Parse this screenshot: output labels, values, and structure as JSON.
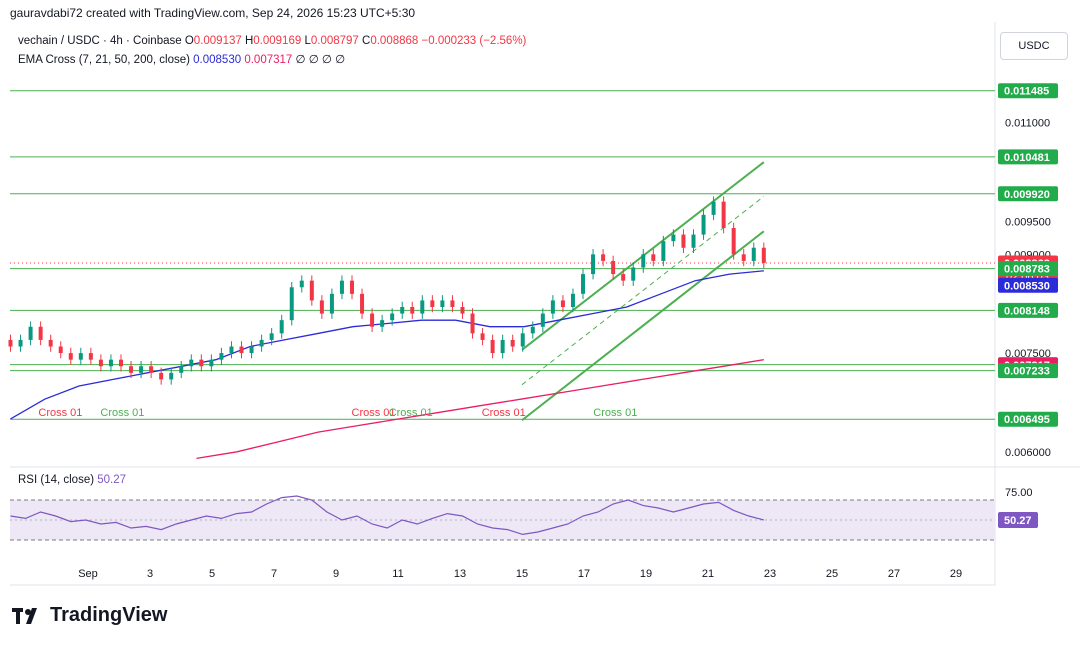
{
  "credit": "gauravdabi72 created with TradingView.com, Sep 24, 2026 15:23 UTC+5:30",
  "legend": {
    "symbol": "vechain / USDC · 4h · Coinbase",
    "o_label": "O",
    "o_value": "0.009137",
    "h_label": "H",
    "h_value": "0.009169",
    "l_label": "L",
    "l_value": "0.008797",
    "c_label": "C",
    "c_value": "0.008868",
    "change": "−0.000233 (−2.56%)",
    "ema_title": "EMA Cross (7, 21, 50, 200, close)",
    "ema_v1": "0.008530",
    "ema_v2": "0.007317",
    "ema_rest": "∅ ∅ ∅ ∅"
  },
  "currency_button": "USDC",
  "rsi_legend": {
    "title": "RSI (14, close)",
    "value": "50.27"
  },
  "logo_text": "TradingView",
  "colors": {
    "green": "#4caf50",
    "greenLabel": "#22ab4a",
    "red": "#f23645",
    "ema50": "#2b2bd9",
    "ema200": "#e91e63",
    "rsi": "#7e57c2",
    "rsiBand": "#ede7f6"
  },
  "chart_data": {
    "type": "candlestick",
    "x_ticks": [
      "Sep",
      "3",
      "5",
      "7",
      "9",
      "11",
      "13",
      "15",
      "17",
      "19",
      "21",
      "23",
      "25",
      "27",
      "29"
    ],
    "y_ticks": [
      "0.011000",
      "0.009500",
      "0.009000",
      "0.007500",
      "0.006000"
    ],
    "y_range": [
      0.0058,
      0.0118
    ],
    "horizontal_levels": [
      "0.011485",
      "0.010481",
      "0.009920",
      "0.008783",
      "0.008148",
      "0.007325",
      "0.007233",
      "0.006495"
    ],
    "price_labels": [
      {
        "value": "0.011485",
        "color": "#22ab4a"
      },
      {
        "value": "0.010481",
        "color": "#22ab4a"
      },
      {
        "value": "0.009920",
        "color": "#22ab4a"
      },
      {
        "value": "0.008868",
        "color": "#f23645",
        "sub": "02:06:03"
      },
      {
        "value": "0.008783",
        "color": "#22ab4a"
      },
      {
        "value": "0.008530",
        "color": "#2b2bd9"
      },
      {
        "value": "0.008148",
        "color": "#22ab4a"
      },
      {
        "value": "0.007325",
        "color": "#22ab4a"
      },
      {
        "value": "0.007317",
        "color": "#e91e63"
      },
      {
        "value": "0.007233",
        "color": "#22ab4a"
      },
      {
        "value": "0.006495",
        "color": "#22ab4a"
      }
    ],
    "cross_labels": [
      {
        "text": "Cross 01",
        "color": "#f23645",
        "day": 0.4
      },
      {
        "text": "Cross 01",
        "color": "#4caf50",
        "day": 2.4
      },
      {
        "text": "Cross 01",
        "color": "#f23645",
        "day": 10.5
      },
      {
        "text": "Cross 01",
        "color": "#4caf50",
        "day": 11.7
      },
      {
        "text": "Cross 01",
        "color": "#f23645",
        "day": 14.7
      },
      {
        "text": "Cross 01",
        "color": "#4caf50",
        "day": 18.3
      }
    ],
    "price_series": [
      [
        0.0077,
        0.0076
      ],
      [
        0.0076,
        0.0077
      ],
      [
        0.0077,
        0.0079
      ],
      [
        0.0079,
        0.0077
      ],
      [
        0.0077,
        0.0076
      ],
      [
        0.0076,
        0.0075
      ],
      [
        0.0075,
        0.0074
      ],
      [
        0.0074,
        0.0075
      ],
      [
        0.0075,
        0.0074
      ],
      [
        0.0074,
        0.0073
      ],
      [
        0.0073,
        0.0074
      ],
      [
        0.0074,
        0.0073
      ],
      [
        0.0073,
        0.0072
      ],
      [
        0.0072,
        0.0073
      ],
      [
        0.0073,
        0.0072
      ],
      [
        0.0072,
        0.0071
      ],
      [
        0.0071,
        0.0072
      ],
      [
        0.0072,
        0.0073
      ],
      [
        0.0073,
        0.0074
      ],
      [
        0.0074,
        0.0073
      ],
      [
        0.0073,
        0.0074
      ],
      [
        0.0074,
        0.0075
      ],
      [
        0.0075,
        0.0076
      ],
      [
        0.0076,
        0.0075
      ],
      [
        0.0075,
        0.0076
      ],
      [
        0.0076,
        0.0077
      ],
      [
        0.0077,
        0.0078
      ],
      [
        0.0078,
        0.008
      ],
      [
        0.008,
        0.0085
      ],
      [
        0.0085,
        0.0086
      ],
      [
        0.0086,
        0.0083
      ],
      [
        0.0083,
        0.0081
      ],
      [
        0.0081,
        0.0084
      ],
      [
        0.0084,
        0.0086
      ],
      [
        0.0086,
        0.0084
      ],
      [
        0.0084,
        0.0081
      ],
      [
        0.0081,
        0.0079
      ],
      [
        0.0079,
        0.008
      ],
      [
        0.008,
        0.0081
      ],
      [
        0.0081,
        0.0082
      ],
      [
        0.0082,
        0.0081
      ],
      [
        0.0081,
        0.0083
      ],
      [
        0.0083,
        0.0082
      ],
      [
        0.0082,
        0.0083
      ],
      [
        0.0083,
        0.0082
      ],
      [
        0.0082,
        0.0081
      ],
      [
        0.0081,
        0.0078
      ],
      [
        0.0078,
        0.0077
      ],
      [
        0.0077,
        0.0075
      ],
      [
        0.0075,
        0.0077
      ],
      [
        0.0077,
        0.0076
      ],
      [
        0.0076,
        0.0078
      ],
      [
        0.0078,
        0.0079
      ],
      [
        0.0079,
        0.0081
      ],
      [
        0.0081,
        0.0083
      ],
      [
        0.0083,
        0.0082
      ],
      [
        0.0082,
        0.0084
      ],
      [
        0.0084,
        0.0087
      ],
      [
        0.0087,
        0.009
      ],
      [
        0.009,
        0.0089
      ],
      [
        0.0089,
        0.0087
      ],
      [
        0.0087,
        0.0086
      ],
      [
        0.0086,
        0.0088
      ],
      [
        0.0088,
        0.009
      ],
      [
        0.009,
        0.0089
      ],
      [
        0.0089,
        0.0092
      ],
      [
        0.0092,
        0.0093
      ],
      [
        0.0093,
        0.0091
      ],
      [
        0.0091,
        0.0093
      ],
      [
        0.0093,
        0.0096
      ],
      [
        0.0096,
        0.0098
      ],
      [
        0.0098,
        0.0094
      ],
      [
        0.0094,
        0.009
      ],
      [
        0.009,
        0.0089
      ],
      [
        0.0089,
        0.0091
      ],
      [
        0.0091,
        0.00887
      ]
    ],
    "ema50": [
      0.0065,
      0.0068,
      0.007,
      0.0071,
      0.0072,
      0.0073,
      0.0074,
      0.0076,
      0.0077,
      0.0078,
      0.0079,
      0.00795,
      0.008,
      0.008,
      0.0079,
      0.0079,
      0.008,
      0.0081,
      0.0082,
      0.0084,
      0.0086,
      0.0087,
      0.00875
    ],
    "ema200": [
      0.0059,
      0.006,
      0.00615,
      0.0063,
      0.0064,
      0.0065,
      0.0066,
      0.0067,
      0.0068,
      0.0069,
      0.007,
      0.0071,
      0.0072,
      0.0073,
      0.0074
    ],
    "rsi": {
      "levels": [
        75,
        25
      ],
      "last": "50.27",
      "label_75": "75.00",
      "series": [
        55,
        52,
        60,
        55,
        48,
        50,
        45,
        47,
        40,
        42,
        38,
        45,
        50,
        55,
        52,
        58,
        60,
        70,
        78,
        80,
        75,
        60,
        50,
        55,
        45,
        40,
        50,
        45,
        52,
        58,
        55,
        45,
        40,
        38,
        32,
        35,
        40,
        45,
        55,
        60,
        70,
        75,
        68,
        65,
        60,
        65,
        70,
        72,
        62,
        55,
        50
      ]
    }
  }
}
